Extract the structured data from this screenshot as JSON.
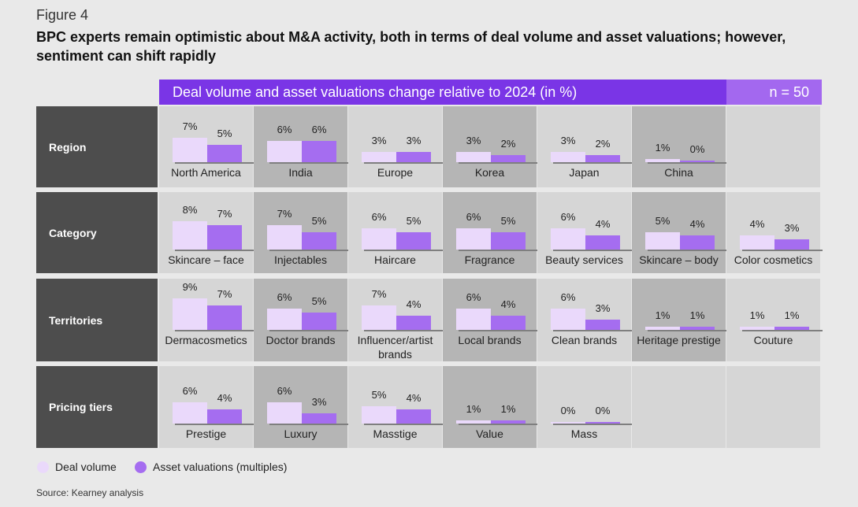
{
  "figure_label": "Figure 4",
  "title": "BPC experts remain optimistic about M&A activity, both in terms of deal volume and asset valuations; however, sentiment can shift rapidly",
  "header": {
    "text": "Deal volume and asset valuations change relative to 2024 (in %)",
    "n": "n = 50"
  },
  "legend": {
    "deal": "Deal volume",
    "asset": "Asset valuations (multiples)"
  },
  "source": "Source: Kearney analysis",
  "colors": {
    "deal": "#ead9fb",
    "asset": "#a56df0",
    "header": "#7a35e6",
    "n_header": "#a368ef",
    "row_label": "#4d4d4d"
  },
  "chart_data": {
    "type": "bar",
    "unit": "%",
    "series": [
      {
        "name": "Deal volume",
        "key": "deal"
      },
      {
        "name": "Asset valuations (multiples)",
        "key": "asset"
      }
    ],
    "groups": [
      {
        "label": "Region",
        "items": [
          {
            "name": "North America",
            "deal": 7,
            "asset": 5
          },
          {
            "name": "India",
            "deal": 6,
            "asset": 6
          },
          {
            "name": "Europe",
            "deal": 3,
            "asset": 3
          },
          {
            "name": "Korea",
            "deal": 3,
            "asset": 2
          },
          {
            "name": "Japan",
            "deal": 3,
            "asset": 2
          },
          {
            "name": "China",
            "deal": 1,
            "asset": 0
          }
        ]
      },
      {
        "label": "Category",
        "items": [
          {
            "name": "Skincare – face",
            "deal": 8,
            "asset": 7
          },
          {
            "name": "Injectables",
            "deal": 7,
            "asset": 5
          },
          {
            "name": "Haircare",
            "deal": 6,
            "asset": 5
          },
          {
            "name": "Fragrance",
            "deal": 6,
            "asset": 5
          },
          {
            "name": "Beauty services",
            "deal": 6,
            "asset": 4
          },
          {
            "name": "Skincare – body",
            "deal": 5,
            "asset": 4
          },
          {
            "name": "Color cosmetics",
            "deal": 4,
            "asset": 3
          }
        ]
      },
      {
        "label": "Territories",
        "items": [
          {
            "name": "Dermacosmetics",
            "deal": 9,
            "asset": 7
          },
          {
            "name": "Doctor brands",
            "deal": 6,
            "asset": 5
          },
          {
            "name": "Influencer/artist brands",
            "deal": 7,
            "asset": 4
          },
          {
            "name": "Local brands",
            "deal": 6,
            "asset": 4
          },
          {
            "name": "Clean brands",
            "deal": 6,
            "asset": 3
          },
          {
            "name": "Heritage prestige",
            "deal": 1,
            "asset": 1
          },
          {
            "name": "Couture",
            "deal": 1,
            "asset": 1
          }
        ]
      },
      {
        "label": "Pricing tiers",
        "items": [
          {
            "name": "Prestige",
            "deal": 6,
            "asset": 4
          },
          {
            "name": "Luxury",
            "deal": 6,
            "asset": 3
          },
          {
            "name": "Masstige",
            "deal": 5,
            "asset": 4
          },
          {
            "name": "Value",
            "deal": 1,
            "asset": 1
          },
          {
            "name": "Mass",
            "deal": 0,
            "asset": 0
          }
        ]
      }
    ]
  }
}
